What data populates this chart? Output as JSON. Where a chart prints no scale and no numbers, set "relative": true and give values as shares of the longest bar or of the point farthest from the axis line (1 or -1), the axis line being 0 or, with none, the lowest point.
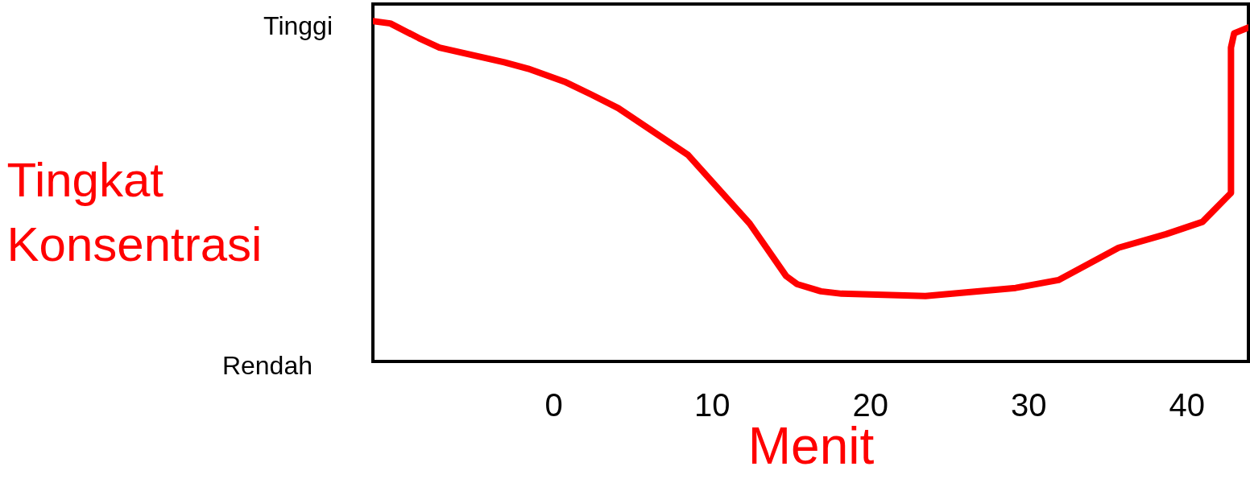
{
  "chart_data": {
    "type": "line",
    "relative": true,
    "xlabel": "Menit",
    "ylabel": "Tingkat Konsentrasi",
    "x": [
      -11.4,
      -10.3,
      -8.5,
      -7.2,
      -3.1,
      -1.6,
      0.7,
      2.4,
      4.1,
      8.5,
      12.4,
      14.7,
      15.4,
      16.9,
      18.2,
      23.5,
      29.2,
      31.9,
      35.7,
      38.7,
      41.0,
      42.8,
      42.8,
      43.0,
      43.9
    ],
    "xlim": [
      -11.4,
      43.9
    ],
    "xticks": [
      0,
      10,
      20,
      30,
      40
    ],
    "series": [
      {
        "color": "#ff0000",
        "values": [
          1.0,
          0.993,
          0.95,
          0.922,
          0.879,
          0.86,
          0.822,
          0.784,
          0.744,
          0.607,
          0.405,
          0.251,
          0.227,
          0.206,
          0.199,
          0.192,
          0.216,
          0.239,
          0.334,
          0.374,
          0.41,
          0.495,
          0.922,
          0.964,
          0.981
        ]
      }
    ],
    "annotations": [
      "Tinggi",
      "Rendah"
    ]
  }
}
